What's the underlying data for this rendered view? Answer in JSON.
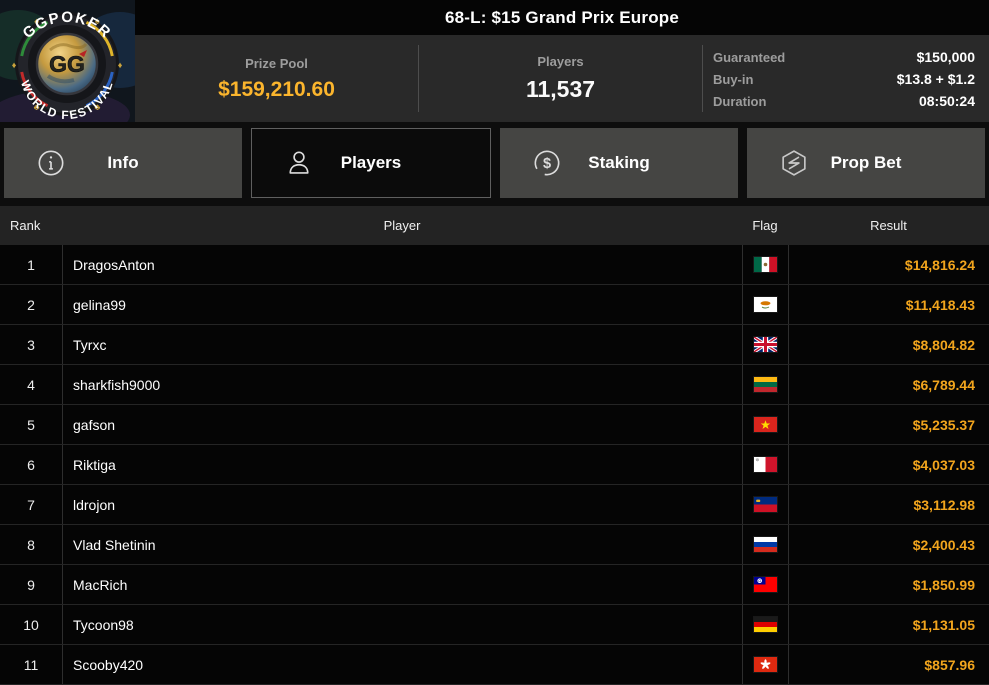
{
  "header": {
    "title": "68-L: $15 Grand Prix Europe",
    "logo": {
      "top_text": "GGPOKER",
      "bottom_text": "WORLD FESTIVAL",
      "center_text": "GG"
    },
    "stats": {
      "prize_pool": {
        "label": "Prize Pool",
        "value": "$159,210.60"
      },
      "players": {
        "label": "Players",
        "value": "11,537"
      },
      "details": [
        {
          "label": "Guaranteed",
          "value": "$150,000"
        },
        {
          "label": "Buy-in",
          "value": "$13.8 + $1.2"
        },
        {
          "label": "Duration",
          "value": "08:50:24"
        }
      ]
    }
  },
  "tabs": [
    {
      "label": "Info",
      "icon": "info-icon",
      "active": false
    },
    {
      "label": "Players",
      "icon": "players-icon",
      "active": true
    },
    {
      "label": "Staking",
      "icon": "staking-icon",
      "active": false
    },
    {
      "label": "Prop Bet",
      "icon": "prop-bet-icon",
      "active": false
    }
  ],
  "table": {
    "columns": {
      "rank": "Rank",
      "player": "Player",
      "flag": "Flag",
      "result": "Result"
    },
    "rows": [
      {
        "rank": "1",
        "player": "DragosAnton",
        "flag": "mx",
        "country": "Mexico",
        "result": "$14,816.24"
      },
      {
        "rank": "2",
        "player": "gelina99",
        "flag": "cy",
        "country": "Cyprus",
        "result": "$11,418.43"
      },
      {
        "rank": "3",
        "player": "Tyrxc",
        "flag": "gb",
        "country": "United Kingdom",
        "result": "$8,804.82"
      },
      {
        "rank": "4",
        "player": "sharkfish9000",
        "flag": "lt",
        "country": "Lithuania",
        "result": "$6,789.44"
      },
      {
        "rank": "5",
        "player": "gafson",
        "flag": "vn",
        "country": "Vietnam",
        "result": "$5,235.37"
      },
      {
        "rank": "6",
        "player": "Riktiga",
        "flag": "mt",
        "country": "Malta",
        "result": "$4,037.03"
      },
      {
        "rank": "7",
        "player": "ldrojon",
        "flag": "li",
        "country": "Liechtenstein",
        "result": "$3,112.98"
      },
      {
        "rank": "8",
        "player": "Vlad Shetinin",
        "flag": "ru",
        "country": "Russia",
        "result": "$2,400.43"
      },
      {
        "rank": "9",
        "player": "MacRich",
        "flag": "tw",
        "country": "Taiwan",
        "result": "$1,850.99"
      },
      {
        "rank": "10",
        "player": "Tycoon98",
        "flag": "de",
        "country": "Germany",
        "result": "$1,131.05"
      },
      {
        "rank": "11",
        "player": "Scooby420",
        "flag": "hk",
        "country": "Hong Kong",
        "result": "$857.96"
      }
    ]
  },
  "colors": {
    "result_gold": "#f2a51d",
    "prize_gold": "#fbb52d",
    "stats_bg": "#292929",
    "tab_inactive_bg": "#454543",
    "row_bg": "#050505"
  }
}
